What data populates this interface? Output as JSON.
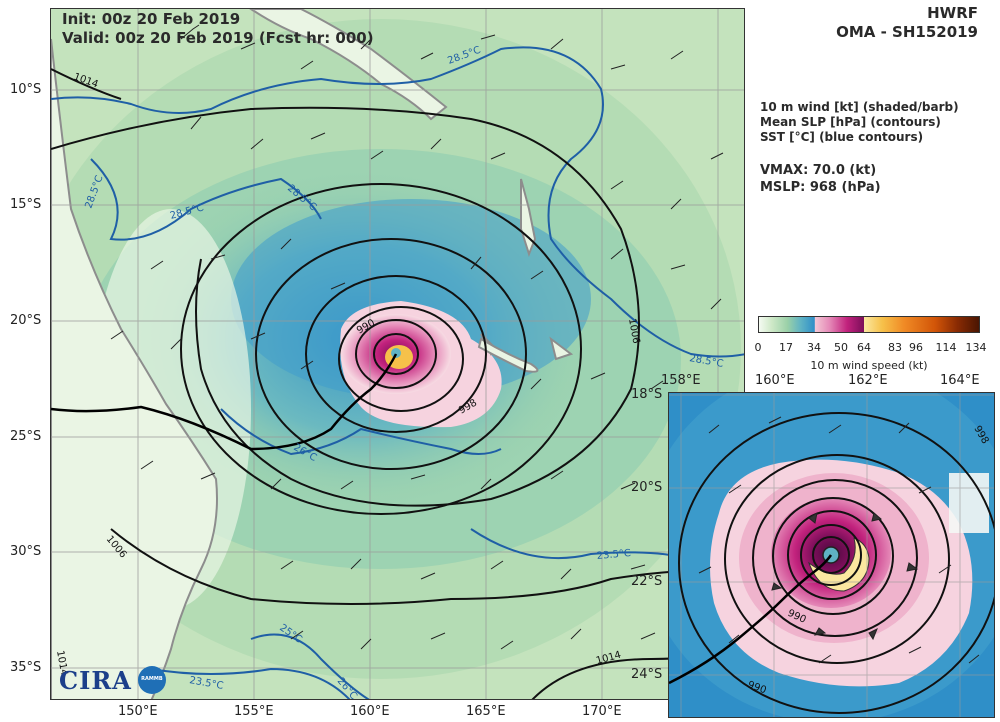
{
  "header": {
    "init_line": "Init:   00z 20 Feb 2019",
    "valid_line": "Valid: 00z 20 Feb 2019 (Fcst hr: 000)",
    "model": "HWRF",
    "storm": "OMA - SH152019"
  },
  "legend": {
    "lines": [
      "10 m wind [kt] (shaded/barb)",
      "Mean SLP [hPa] (contours)",
      "SST [°C] (blue contours)"
    ],
    "vmax": "VMAX:  70.0 (kt)",
    "mslp": "MSLP:  968 (hPa)"
  },
  "colorbar": {
    "ticks": [
      "0",
      "17",
      "34",
      "50",
      "64",
      "83",
      "96",
      "114",
      "134"
    ],
    "label": "10 m wind speed (kt)",
    "colors": [
      "#f5fbf2",
      "#cde8c6",
      "#9ad0a8",
      "#5fb3c4",
      "#2f8fc8",
      "#f4c9d6",
      "#e58ab8",
      "#c2227d",
      "#7c0e5a",
      "#fbe7a0",
      "#f6c14a",
      "#f08a25",
      "#d25508",
      "#8a2b03",
      "#4a1502"
    ]
  },
  "main_map": {
    "lat_labels": [
      "10°S",
      "15°S",
      "20°S",
      "25°S",
      "30°S",
      "35°S"
    ],
    "lon_labels": [
      "150°E",
      "155°E",
      "160°E",
      "165°E",
      "170°E"
    ],
    "slp_labels": [
      "1014",
      "1006",
      "1006",
      "990",
      "998",
      "1014",
      "1014"
    ],
    "sst_labels": [
      "28.5°C",
      "28.5°C",
      "28.5°C",
      "28.5°C",
      "28.5°C",
      "26°C",
      "23.5°C",
      "25°C",
      "23.5°C",
      "26°C"
    ]
  },
  "inset_map": {
    "lon_labels": [
      "158°E",
      "160°E",
      "162°E",
      "164°E"
    ],
    "lat_labels": [
      "18°S",
      "20°S",
      "22°S",
      "24°S"
    ],
    "slp_labels": [
      "990",
      "990",
      "998"
    ]
  },
  "logo": {
    "text": "CIRA",
    "sub": "RAMMB"
  }
}
